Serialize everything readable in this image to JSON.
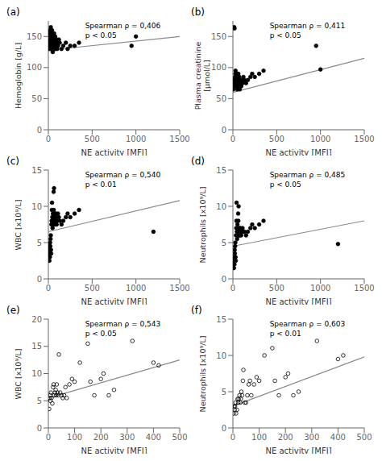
{
  "chart_data": [
    {
      "type": "scatter",
      "title": "(a)",
      "annotations": [
        "Spearman ρ = 0,406",
        "p < 0.05"
      ],
      "x_label": "NE activity [MFI]",
      "y_label": "Hemoglobin [g/L]",
      "xlim": [
        0,
        1500
      ],
      "ylim": [
        0,
        175
      ],
      "xticks": [
        0,
        500,
        1000,
        1500
      ],
      "yticks": [
        0,
        50,
        100,
        150
      ],
      "grid": false,
      "series": [
        {
          "type": "scatter",
          "marker": "circle",
          "color": "#000000",
          "x": [
            5,
            8,
            10,
            12,
            15,
            18,
            20,
            22,
            25,
            28,
            30,
            32,
            35,
            38,
            40,
            42,
            45,
            48,
            50,
            52,
            55,
            58,
            60,
            62,
            65,
            68,
            70,
            72,
            75,
            78,
            80,
            82,
            85,
            90,
            95,
            100,
            105,
            110,
            120,
            130,
            150,
            170,
            200,
            220,
            250,
            300,
            350,
            950,
            1000
          ],
          "values": [
            140,
            135,
            130,
            155,
            145,
            160,
            150,
            140,
            130,
            165,
            145,
            135,
            155,
            150,
            145,
            160,
            140,
            130,
            125,
            140,
            145,
            135,
            150,
            140,
            155,
            130,
            145,
            140,
            135,
            150,
            145,
            130,
            140,
            135,
            145,
            130,
            140,
            135,
            145,
            140,
            130,
            135,
            140,
            130,
            135,
            135,
            140,
            135,
            150
          ]
        },
        {
          "type": "line",
          "line_style": "solid",
          "color": "#888888",
          "x": [
            0,
            1500
          ],
          "values": [
            128,
            150
          ]
        }
      ]
    },
    {
      "type": "scatter",
      "title": "(b)",
      "annotations": [
        "Spearman ρ = 0,411",
        "p < 0.05"
      ],
      "x_label": "NE activity [MFI]",
      "y_label": "Plasma creatinine\n[μmol/L]",
      "xlim": [
        0,
        1500
      ],
      "ylim": [
        0,
        175
      ],
      "xticks": [
        0,
        500,
        1000,
        1500
      ],
      "yticks": [
        0,
        50,
        100,
        150
      ],
      "grid": false,
      "series": [
        {
          "type": "scatter",
          "marker": "circle",
          "color": "#000000",
          "x": [
            5,
            8,
            10,
            12,
            15,
            18,
            20,
            22,
            25,
            28,
            30,
            32,
            35,
            38,
            40,
            42,
            45,
            48,
            50,
            52,
            55,
            58,
            60,
            62,
            65,
            68,
            70,
            72,
            75,
            78,
            80,
            82,
            85,
            90,
            95,
            100,
            105,
            110,
            120,
            130,
            150,
            170,
            200,
            220,
            250,
            300,
            350,
            950,
            1000
          ],
          "values": [
            65,
            70,
            75,
            80,
            165,
            163,
            80,
            75,
            85,
            90,
            95,
            70,
            80,
            75,
            80,
            90,
            75,
            70,
            65,
            80,
            85,
            75,
            80,
            90,
            75,
            70,
            80,
            85,
            75,
            65,
            80,
            70,
            75,
            80,
            70,
            75,
            80,
            75,
            85,
            80,
            75,
            80,
            85,
            90,
            85,
            90,
            95,
            135,
            97
          ]
        },
        {
          "type": "line",
          "line_style": "solid",
          "color": "#888888",
          "x": [
            0,
            1500
          ],
          "values": [
            60,
            115
          ]
        }
      ]
    },
    {
      "type": "scatter",
      "title": "(c)",
      "annotations": [
        "Spearman ρ = 0,540",
        "p < 0.01"
      ],
      "x_label": "NE activity [MFI]",
      "y_label": "WBC [x10⁹/L]",
      "xlim": [
        0,
        1500
      ],
      "ylim": [
        0,
        15
      ],
      "xticks": [
        0,
        500,
        1000,
        1500
      ],
      "yticks": [
        0,
        5,
        10,
        15
      ],
      "grid": false,
      "series": [
        {
          "type": "scatter",
          "marker": "circle",
          "color": "#000000",
          "x": [
            5,
            8,
            10,
            12,
            15,
            18,
            20,
            22,
            25,
            28,
            30,
            32,
            35,
            38,
            40,
            42,
            45,
            48,
            50,
            52,
            55,
            58,
            60,
            62,
            65,
            68,
            70,
            72,
            75,
            78,
            80,
            85,
            90,
            95,
            100,
            110,
            120,
            130,
            150,
            170,
            200,
            220,
            250,
            300,
            350,
            1200
          ],
          "values": [
            3.0,
            3.5,
            4.0,
            2.5,
            4.5,
            3.0,
            5.0,
            4.5,
            5.5,
            6.0,
            4.0,
            3.5,
            7.5,
            8.0,
            9.5,
            10.5,
            8.5,
            7.0,
            8.0,
            9.0,
            7.5,
            8.5,
            12.0,
            9.5,
            12.5,
            8.0,
            7.5,
            8.0,
            9.0,
            8.5,
            7.5,
            9.0,
            8.5,
            7.5,
            8.0,
            9.0,
            8.5,
            8.0,
            7.5,
            8.0,
            8.5,
            9.0,
            8.5,
            9.0,
            9.5,
            6.5
          ]
        },
        {
          "type": "line",
          "line_style": "solid",
          "color": "#888888",
          "x": [
            0,
            1500
          ],
          "values": [
            6.5,
            10.8
          ]
        }
      ]
    },
    {
      "type": "scatter",
      "title": "(d)",
      "annotations": [
        "Spearman ρ = 0,485",
        "p < 0.05"
      ],
      "x_label": "NE activity [MFI]",
      "y_label": "Neutrophils [x10⁹/L]",
      "xlim": [
        0,
        1500
      ],
      "ylim": [
        0,
        15
      ],
      "xticks": [
        0,
        500,
        1000,
        1500
      ],
      "yticks": [
        0,
        5,
        10,
        15
      ],
      "grid": false,
      "series": [
        {
          "type": "scatter",
          "marker": "circle",
          "color": "#000000",
          "x": [
            5,
            8,
            10,
            12,
            15,
            18,
            20,
            22,
            25,
            28,
            30,
            32,
            35,
            38,
            40,
            42,
            45,
            48,
            50,
            52,
            55,
            58,
            60,
            62,
            65,
            68,
            70,
            72,
            75,
            78,
            80,
            85,
            90,
            95,
            100,
            110,
            120,
            130,
            150,
            170,
            200,
            220,
            250,
            300,
            350,
            1200
          ],
          "values": [
            1.5,
            2.0,
            2.5,
            1.5,
            3.0,
            2.0,
            4.0,
            3.5,
            4.5,
            5.0,
            3.0,
            2.5,
            6.0,
            7.0,
            8.0,
            10.5,
            6.5,
            5.5,
            6.5,
            7.5,
            6.0,
            7.0,
            9.0,
            8.0,
            10.0,
            6.0,
            6.0,
            6.5,
            7.0,
            6.5,
            6.0,
            7.0,
            6.5,
            6.0,
            6.5,
            7.0,
            6.5,
            6.5,
            6.0,
            6.5,
            7.0,
            7.5,
            7.0,
            7.5,
            8.0,
            4.8
          ]
        },
        {
          "type": "line",
          "line_style": "solid",
          "color": "#888888",
          "x": [
            0,
            1500
          ],
          "values": [
            4.5,
            8.0
          ]
        }
      ]
    },
    {
      "type": "scatter",
      "title": "(e)",
      "annotations": [
        "Spearman ρ = 0,543",
        "p < 0.05"
      ],
      "x_label": "NE activity [MFI]",
      "y_label": "WBC [x10⁹/L]",
      "xlim": [
        0,
        500
      ],
      "ylim": [
        0,
        20
      ],
      "xticks": [
        0,
        100,
        200,
        300,
        400,
        500
      ],
      "yticks": [
        0,
        5,
        10,
        15,
        20
      ],
      "grid": false,
      "series": [
        {
          "type": "scatter",
          "marker": "circle_open",
          "color": "#000000",
          "x": [
            3,
            5,
            7,
            8,
            10,
            12,
            15,
            18,
            20,
            22,
            25,
            28,
            30,
            32,
            35,
            38,
            40,
            45,
            50,
            55,
            60,
            65,
            70,
            80,
            90,
            100,
            120,
            150,
            160,
            175,
            200,
            210,
            230,
            250,
            320,
            400,
            420
          ],
          "values": [
            3.5,
            5.5,
            6.0,
            5.0,
            6.5,
            5.5,
            4.5,
            7.5,
            8.0,
            6.0,
            6.5,
            7.0,
            6.0,
            8.0,
            6.5,
            6.0,
            13.5,
            6.5,
            6.0,
            5.5,
            6.0,
            7.5,
            5.5,
            8.0,
            9.0,
            8.5,
            12.0,
            15.5,
            8.5,
            6.0,
            9.0,
            10.0,
            6.0,
            7.0,
            16.0,
            12.0,
            11.5
          ]
        },
        {
          "type": "line",
          "line_style": "solid",
          "color": "#888888",
          "x": [
            0,
            500
          ],
          "values": [
            5.5,
            12.5
          ]
        }
      ]
    },
    {
      "type": "scatter",
      "title": "(f)",
      "annotations": [
        "Spearman ρ = 0,603",
        "p < 0.01"
      ],
      "x_label": "NE activity [MFI]",
      "y_label": "Neutrophils [x10⁹/L]",
      "xlim": [
        0,
        500
      ],
      "ylim": [
        0,
        15
      ],
      "xticks": [
        0,
        100,
        200,
        300,
        400,
        500
      ],
      "yticks": [
        0,
        5,
        10,
        15
      ],
      "grid": false,
      "series": [
        {
          "type": "scatter",
          "marker": "circle_open",
          "color": "#000000",
          "x": [
            3,
            5,
            7,
            8,
            10,
            12,
            15,
            18,
            20,
            22,
            25,
            28,
            30,
            32,
            35,
            38,
            40,
            45,
            50,
            55,
            60,
            65,
            70,
            80,
            90,
            100,
            120,
            150,
            160,
            175,
            200,
            210,
            230,
            250,
            320,
            400,
            420
          ],
          "values": [
            2.0,
            3.0,
            2.5,
            3.0,
            3.5,
            2.0,
            2.5,
            4.0,
            3.5,
            4.0,
            4.5,
            3.5,
            4.0,
            5.0,
            4.5,
            6.5,
            8.0,
            3.5,
            3.5,
            4.5,
            6.0,
            6.5,
            4.5,
            6.0,
            7.0,
            6.5,
            10.0,
            11.0,
            6.5,
            4.5,
            7.0,
            7.5,
            4.5,
            5.0,
            12.0,
            9.5,
            10.0
          ]
        },
        {
          "type": "line",
          "line_style": "solid",
          "color": "#888888",
          "x": [
            0,
            500
          ],
          "values": [
            3.0,
            9.8
          ]
        }
      ]
    }
  ]
}
